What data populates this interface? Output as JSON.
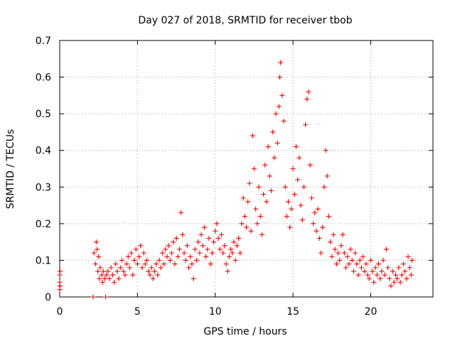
{
  "chart_data": {
    "type": "scatter",
    "title": "Day 027 of 2018, SRMTID for receiver tbob",
    "xlabel": "GPS time / hours",
    "ylabel": "SRMTID / TECUs",
    "xlim": [
      0,
      24
    ],
    "ylim": [
      0,
      0.7
    ],
    "xticks": [
      0,
      5,
      10,
      15,
      20
    ],
    "xtick_labels": [
      "0",
      "5",
      "10",
      "15",
      "20"
    ],
    "yticks": [
      0,
      0.1,
      0.2,
      0.3,
      0.4,
      0.5,
      0.6,
      0.7
    ],
    "ytick_labels": [
      "0",
      "0.1",
      "0.2",
      "0.3",
      "0.4",
      "0.5",
      "0.6",
      "0.7"
    ],
    "grid": true,
    "series": [
      {
        "name": "SRMTID",
        "color": "#ff0000",
        "marker": "plus",
        "points": [
          [
            0.0,
            0.02
          ],
          [
            0.0,
            0.04
          ],
          [
            0.0,
            0.06
          ],
          [
            0.02,
            0.07
          ],
          [
            0.02,
            0.03
          ],
          [
            2.15,
            0.0
          ],
          [
            2.95,
            0.0
          ],
          [
            2.2,
            0.12
          ],
          [
            2.3,
            0.09
          ],
          [
            2.35,
            0.15
          ],
          [
            2.4,
            0.13
          ],
          [
            2.45,
            0.07
          ],
          [
            2.5,
            0.11
          ],
          [
            2.55,
            0.05
          ],
          [
            2.6,
            0.08
          ],
          [
            2.7,
            0.06
          ],
          [
            2.75,
            0.04
          ],
          [
            2.8,
            0.07
          ],
          [
            2.9,
            0.05
          ],
          [
            3.0,
            0.06
          ],
          [
            3.1,
            0.07
          ],
          [
            3.2,
            0.05
          ],
          [
            3.3,
            0.08
          ],
          [
            3.4,
            0.06
          ],
          [
            3.5,
            0.04
          ],
          [
            3.6,
            0.09
          ],
          [
            3.7,
            0.07
          ],
          [
            3.8,
            0.05
          ],
          [
            3.9,
            0.08
          ],
          [
            4.0,
            0.1
          ],
          [
            4.1,
            0.07
          ],
          [
            4.2,
            0.06
          ],
          [
            4.3,
            0.09
          ],
          [
            4.4,
            0.11
          ],
          [
            4.5,
            0.08
          ],
          [
            4.6,
            0.12
          ],
          [
            4.7,
            0.06
          ],
          [
            4.8,
            0.1
          ],
          [
            4.9,
            0.13
          ],
          [
            5.0,
            0.09
          ],
          [
            5.1,
            0.11
          ],
          [
            5.2,
            0.14
          ],
          [
            5.3,
            0.08
          ],
          [
            5.4,
            0.12
          ],
          [
            5.5,
            0.09
          ],
          [
            5.6,
            0.1
          ],
          [
            5.7,
            0.07
          ],
          [
            5.8,
            0.06
          ],
          [
            5.9,
            0.08
          ],
          [
            6.0,
            0.05
          ],
          [
            6.1,
            0.07
          ],
          [
            6.2,
            0.09
          ],
          [
            6.3,
            0.06
          ],
          [
            6.4,
            0.1
          ],
          [
            6.5,
            0.08
          ],
          [
            6.6,
            0.12
          ],
          [
            6.7,
            0.09
          ],
          [
            6.8,
            0.13
          ],
          [
            6.9,
            0.11
          ],
          [
            7.0,
            0.14
          ],
          [
            7.1,
            0.1
          ],
          [
            7.2,
            0.12
          ],
          [
            7.3,
            0.15
          ],
          [
            7.4,
            0.09
          ],
          [
            7.5,
            0.16
          ],
          [
            7.6,
            0.11
          ],
          [
            7.7,
            0.13
          ],
          [
            7.8,
            0.23
          ],
          [
            7.9,
            0.17
          ],
          [
            8.0,
            0.12
          ],
          [
            8.1,
            0.1
          ],
          [
            8.2,
            0.14
          ],
          [
            8.3,
            0.08
          ],
          [
            8.4,
            0.11
          ],
          [
            8.5,
            0.09
          ],
          [
            8.6,
            0.05
          ],
          [
            8.7,
            0.13
          ],
          [
            8.8,
            0.1
          ],
          [
            8.9,
            0.15
          ],
          [
            9.0,
            0.12
          ],
          [
            9.1,
            0.17
          ],
          [
            9.2,
            0.14
          ],
          [
            9.3,
            0.19
          ],
          [
            9.4,
            0.11
          ],
          [
            9.5,
            0.13
          ],
          [
            9.6,
            0.16
          ],
          [
            9.7,
            0.09
          ],
          [
            9.8,
            0.12
          ],
          [
            9.9,
            0.15
          ],
          [
            10.0,
            0.18
          ],
          [
            10.1,
            0.2
          ],
          [
            10.2,
            0.16
          ],
          [
            10.3,
            0.13
          ],
          [
            10.4,
            0.17
          ],
          [
            10.5,
            0.12
          ],
          [
            10.6,
            0.14
          ],
          [
            10.7,
            0.09
          ],
          [
            10.8,
            0.07
          ],
          [
            10.9,
            0.11
          ],
          [
            11.0,
            0.13
          ],
          [
            11.1,
            0.12
          ],
          [
            11.2,
            0.15
          ],
          [
            11.3,
            0.1
          ],
          [
            11.4,
            0.14
          ],
          [
            11.5,
            0.16
          ],
          [
            11.6,
            0.12
          ],
          [
            11.7,
            0.2
          ],
          [
            11.8,
            0.27
          ],
          [
            11.9,
            0.22
          ],
          [
            12.0,
            0.19
          ],
          [
            12.1,
            0.26
          ],
          [
            12.2,
            0.31
          ],
          [
            12.3,
            0.18
          ],
          [
            12.4,
            0.44
          ],
          [
            12.5,
            0.35
          ],
          [
            12.6,
            0.24
          ],
          [
            12.7,
            0.2
          ],
          [
            12.8,
            0.3
          ],
          [
            12.9,
            0.22
          ],
          [
            13.0,
            0.17
          ],
          [
            13.1,
            0.28
          ],
          [
            13.2,
            0.36
          ],
          [
            13.3,
            0.26
          ],
          [
            13.4,
            0.41
          ],
          [
            13.5,
            0.33
          ],
          [
            13.6,
            0.29
          ],
          [
            13.7,
            0.45
          ],
          [
            13.8,
            0.38
          ],
          [
            13.9,
            0.5
          ],
          [
            14.0,
            0.42
          ],
          [
            14.1,
            0.52
          ],
          [
            14.15,
            0.6
          ],
          [
            14.2,
            0.64
          ],
          [
            14.3,
            0.55
          ],
          [
            14.4,
            0.48
          ],
          [
            14.5,
            0.3
          ],
          [
            14.6,
            0.22
          ],
          [
            14.7,
            0.26
          ],
          [
            14.8,
            0.19
          ],
          [
            14.9,
            0.24
          ],
          [
            15.0,
            0.35
          ],
          [
            15.1,
            0.28
          ],
          [
            15.2,
            0.41
          ],
          [
            15.3,
            0.32
          ],
          [
            15.4,
            0.38
          ],
          [
            15.5,
            0.25
          ],
          [
            15.6,
            0.21
          ],
          [
            15.7,
            0.3
          ],
          [
            15.8,
            0.47
          ],
          [
            15.9,
            0.54
          ],
          [
            16.0,
            0.56
          ],
          [
            16.1,
            0.36
          ],
          [
            16.2,
            0.27
          ],
          [
            16.3,
            0.2
          ],
          [
            16.4,
            0.23
          ],
          [
            16.5,
            0.18
          ],
          [
            16.6,
            0.24
          ],
          [
            16.7,
            0.16
          ],
          [
            16.8,
            0.12
          ],
          [
            16.9,
            0.19
          ],
          [
            17.0,
            0.3
          ],
          [
            17.1,
            0.4
          ],
          [
            17.2,
            0.33
          ],
          [
            17.3,
            0.22
          ],
          [
            17.4,
            0.15
          ],
          [
            17.5,
            0.11
          ],
          [
            17.6,
            0.17
          ],
          [
            17.7,
            0.13
          ],
          [
            17.8,
            0.09
          ],
          [
            17.9,
            0.12
          ],
          [
            18.0,
            0.1
          ],
          [
            18.1,
            0.14
          ],
          [
            18.2,
            0.17
          ],
          [
            18.3,
            0.12
          ],
          [
            18.4,
            0.08
          ],
          [
            18.5,
            0.11
          ],
          [
            18.6,
            0.09
          ],
          [
            18.7,
            0.13
          ],
          [
            18.8,
            0.1
          ],
          [
            18.9,
            0.07
          ],
          [
            19.0,
            0.12
          ],
          [
            19.1,
            0.09
          ],
          [
            19.2,
            0.06
          ],
          [
            19.3,
            0.1
          ],
          [
            19.4,
            0.08
          ],
          [
            19.5,
            0.11
          ],
          [
            19.6,
            0.07
          ],
          [
            19.7,
            0.09
          ],
          [
            19.8,
            0.06
          ],
          [
            19.9,
            0.05
          ],
          [
            20.0,
            0.1
          ],
          [
            20.1,
            0.07
          ],
          [
            20.2,
            0.04
          ],
          [
            20.3,
            0.08
          ],
          [
            20.4,
            0.06
          ],
          [
            20.5,
            0.09
          ],
          [
            20.6,
            0.05
          ],
          [
            20.7,
            0.07
          ],
          [
            20.8,
            0.1
          ],
          [
            20.9,
            0.06
          ],
          [
            21.0,
            0.13
          ],
          [
            21.1,
            0.08
          ],
          [
            21.2,
            0.05
          ],
          [
            21.3,
            0.03
          ],
          [
            21.4,
            0.07
          ],
          [
            21.5,
            0.04
          ],
          [
            21.6,
            0.06
          ],
          [
            21.7,
            0.05
          ],
          [
            21.8,
            0.08
          ],
          [
            21.9,
            0.04
          ],
          [
            22.0,
            0.06
          ],
          [
            22.1,
            0.09
          ],
          [
            22.2,
            0.07
          ],
          [
            22.3,
            0.05
          ],
          [
            22.4,
            0.11
          ],
          [
            22.5,
            0.08
          ],
          [
            22.6,
            0.06
          ],
          [
            22.65,
            0.1
          ]
        ]
      }
    ]
  }
}
